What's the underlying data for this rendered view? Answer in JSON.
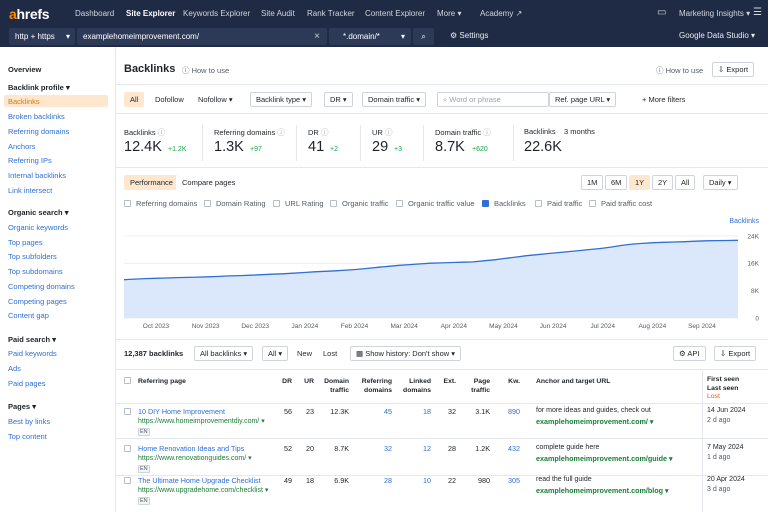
{
  "brand": {
    "a": "a",
    "rest": "hrefs",
    "accent": "#ff8800",
    "nav_bg": "#1f2a44"
  },
  "nav": {
    "items": [
      "Dashboard",
      "Site Explorer",
      "Keywords Explorer",
      "Site Audit",
      "Rank Tracker",
      "Content Explorer",
      "More",
      "Academy"
    ],
    "workspace": "Marketing Insights"
  },
  "urlbar": {
    "protocol": "http + https",
    "url": "examplehomeimprovement.com/",
    "mode": "*.domain/*",
    "settings": "Settings",
    "gds": "Google Data Studio"
  },
  "sidebar": {
    "overview": "Overview",
    "backlink_profile": "Backlink profile",
    "bp_items": [
      "Backlinks",
      "Broken backlinks",
      "Referring domains",
      "Anchors",
      "Referring IPs",
      "Internal backlinks",
      "Link intersect"
    ],
    "organic_search": "Organic search",
    "os_items": [
      "Organic keywords",
      "Top pages",
      "Top subfolders",
      "Top subdomains",
      "Competing domains",
      "Competing pages",
      "Content gap"
    ],
    "paid_search": "Paid search",
    "ps_items": [
      "Paid keywords",
      "Ads",
      "Paid pages"
    ],
    "pages": "Pages",
    "pg_items": [
      "Best by links",
      "Top content"
    ]
  },
  "header": {
    "title": "Backlinks",
    "how_to": "How to use",
    "how_to_right": "How to use",
    "export": "Export"
  },
  "filters": {
    "all": "All",
    "dofollow": "Dofollow",
    "nofollow": "Nofollow",
    "backlink_type": "Backlink type",
    "dr": "DR",
    "domain_traffic": "Domain traffic",
    "search_placeholder": "Word or phrase",
    "ref_page": "Ref. page URL",
    "more": "More filters"
  },
  "stats": [
    {
      "label": "Backlinks",
      "value": "12.4K",
      "delta": "+1.2K"
    },
    {
      "label": "Referring domains",
      "value": "1.3K",
      "delta": "+97"
    },
    {
      "label": "DR",
      "value": "41",
      "delta": "+2"
    },
    {
      "label": "UR",
      "value": "29",
      "delta": "+3"
    },
    {
      "label": "Domain traffic",
      "value": "8.7K",
      "delta": "+620"
    },
    {
      "label": "Backlinks",
      "label2": "3 months",
      "value": "22.6K",
      "delta": ""
    }
  ],
  "chart_controls": {
    "performance": "Performance",
    "compare": "Compare pages",
    "ranges": [
      "1M",
      "6M",
      "1Y",
      "2Y",
      "All"
    ],
    "active_range": "1Y",
    "granularity": "Daily"
  },
  "metric_toggles": [
    {
      "label": "Referring domains",
      "checked": false
    },
    {
      "label": "Domain Rating",
      "checked": false
    },
    {
      "label": "URL Rating",
      "checked": false
    },
    {
      "label": "Organic traffic",
      "checked": false
    },
    {
      "label": "Organic traffic value",
      "checked": false
    },
    {
      "label": "Backlinks",
      "checked": true
    },
    {
      "label": "Paid traffic",
      "checked": false
    },
    {
      "label": "Paid traffic cost",
      "checked": false
    }
  ],
  "chart_data": {
    "type": "area",
    "series": [
      {
        "name": "Backlinks",
        "values": [
          11200,
          11350,
          11500,
          11600,
          11700,
          11800,
          11850,
          11950,
          12050,
          12150,
          12300,
          12400,
          12500,
          12650,
          12800,
          12900,
          13100,
          13300,
          13500,
          13650,
          13800,
          14000,
          14200,
          14500,
          14800,
          15100,
          15400,
          15600,
          15800,
          16000,
          16100,
          16200,
          16300,
          16400,
          16700,
          17000,
          17400,
          17800,
          18200,
          18500,
          18800,
          19100,
          19400,
          19700,
          20000,
          20300,
          20700,
          21200,
          21600,
          21800,
          22000,
          22100,
          22200,
          22300,
          22450,
          22550,
          22600,
          22650,
          22700
        ]
      }
    ],
    "x_labels": [
      "Oct 2023",
      "Nov 2023",
      "Dec 2023",
      "Jan 2024",
      "Feb 2024",
      "Mar 2024",
      "Apr 2024",
      "May 2024",
      "Jun 2024",
      "Jul 2024",
      "Aug 2024",
      "Sep 2024"
    ],
    "y_ticks": [
      "24K",
      "16K",
      "8K",
      "0"
    ],
    "ylim": [
      0,
      26000
    ],
    "color": "#2f6fd8",
    "series_label": "Backlinks"
  },
  "table_bar": {
    "count": "12,387 backlinks",
    "all_backlinks": "All backlinks",
    "all": "All",
    "new": "New",
    "lost": "Lost",
    "history": "Show history: Don't show",
    "api": "API",
    "export": "Export"
  },
  "columns": {
    "ref_page": "Referring page",
    "dr": "DR",
    "ur": "UR",
    "domain_traffic": [
      "Domain",
      "traffic"
    ],
    "ref_domains": [
      "Referring",
      "domains"
    ],
    "linked_domains": [
      "Linked",
      "domains"
    ],
    "ext": "Ext.",
    "page_traffic": [
      "Page",
      "traffic"
    ],
    "kw": "Kw.",
    "anchor": "Anchor and target URL",
    "first_seen": "First seen",
    "last_seen": "Last seen",
    "lost": "Lost"
  },
  "rows": [
    {
      "title": "10 DIY Home Improvement",
      "url": "https://www.homeimprovementdiy.com/",
      "lang": "EN",
      "dr": "56",
      "ur": "23",
      "dt": "12.3K",
      "rd": "45",
      "ld": "18",
      "ext": "32",
      "pt": "3.1K",
      "kw": "890",
      "anchor": "for more ideas and guides, check out",
      "target": "examplehomeimprovement.com/",
      "first": "14 Jun 2024",
      "last": "2 d ago"
    },
    {
      "title": "Home Renovation Ideas and Tips",
      "url": "https://www.renovationguides.com/",
      "lang": "EN",
      "dr": "52",
      "ur": "20",
      "dt": "8.7K",
      "rd": "32",
      "ld": "12",
      "ext": "28",
      "pt": "1.2K",
      "kw": "432",
      "anchor": "complete guide here",
      "target": "examplehomeimprovement.com/guide",
      "first": "7 May 2024",
      "last": "1 d ago"
    },
    {
      "title": "The Ultimate Home Upgrade Checklist",
      "url": "https://www.upgradehome.com/checklist",
      "lang": "EN",
      "dr": "49",
      "ur": "18",
      "dt": "6.9K",
      "rd": "28",
      "ld": "10",
      "ext": "22",
      "pt": "980",
      "kw": "305",
      "anchor": "read the full guide",
      "target": "examplehomeimprovement.com/blog",
      "first": "20 Apr 2024",
      "last": "3 d ago"
    }
  ]
}
